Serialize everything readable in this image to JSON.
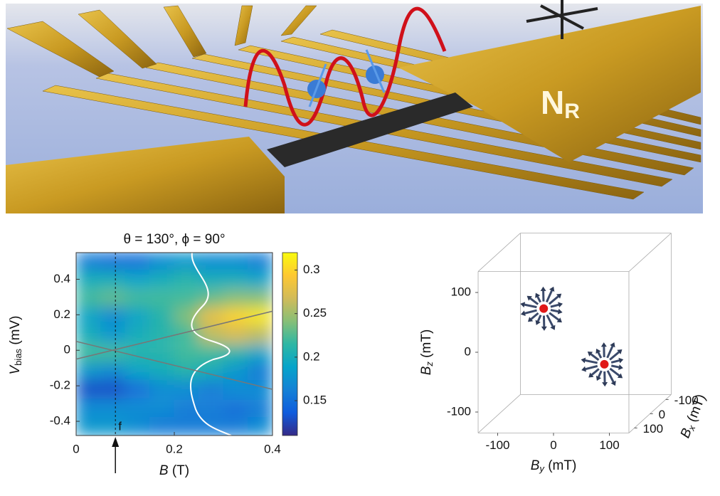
{
  "illustration": {
    "label": "N",
    "subscript": "R"
  },
  "chart_data": [
    {
      "type": "heatmap",
      "title": "θ = 130°, ϕ = 90°",
      "xlabel": {
        "symbol": "B",
        "unit": "(T)"
      },
      "ylabel": {
        "symbol": "V",
        "subscript": "bias",
        "unit": "(mV)"
      },
      "xlim": [
        0,
        0.4
      ],
      "xticks": [
        0,
        0.2,
        0.4
      ],
      "ylim": [
        -0.48,
        0.55
      ],
      "yticks": [
        0.4,
        0.2,
        0,
        -0.2,
        -0.4
      ],
      "x": [
        0.025,
        0.075,
        0.125,
        0.175,
        0.225,
        0.275,
        0.325,
        0.375
      ],
      "y": [
        0.5,
        0.4,
        0.29,
        0.19,
        0.09,
        -0.02,
        -0.12,
        -0.22,
        -0.33,
        -0.43
      ],
      "z": [
        [
          0.16,
          0.15,
          0.15,
          0.17,
          0.18,
          0.17,
          0.17,
          0.16
        ],
        [
          0.2,
          0.2,
          0.19,
          0.2,
          0.21,
          0.2,
          0.2,
          0.19
        ],
        [
          0.22,
          0.23,
          0.22,
          0.22,
          0.22,
          0.23,
          0.24,
          0.24
        ],
        [
          0.19,
          0.17,
          0.19,
          0.21,
          0.24,
          0.28,
          0.3,
          0.31
        ],
        [
          0.2,
          0.18,
          0.2,
          0.21,
          0.22,
          0.26,
          0.27,
          0.26
        ],
        [
          0.22,
          0.22,
          0.21,
          0.21,
          0.22,
          0.22,
          0.21,
          0.19
        ],
        [
          0.18,
          0.17,
          0.19,
          0.2,
          0.21,
          0.2,
          0.18,
          0.16
        ],
        [
          0.13,
          0.13,
          0.15,
          0.17,
          0.17,
          0.16,
          0.17,
          0.17
        ],
        [
          0.17,
          0.17,
          0.17,
          0.17,
          0.16,
          0.16,
          0.15,
          0.16
        ],
        [
          0.18,
          0.18,
          0.17,
          0.16,
          0.16,
          0.16,
          0.16,
          0.17
        ]
      ],
      "clim": [
        0.11,
        0.32
      ],
      "cticks": [
        0.3,
        0.25,
        0.2,
        0.15
      ],
      "colormap": [
        "#352a87",
        "#0f5cdd",
        "#1481d6",
        "#06a4ca",
        "#2eb7a4",
        "#87bf77",
        "#d1bb59",
        "#fec832",
        "#f9fb0e"
      ],
      "lines": [
        {
          "color": "#777777",
          "x": [
            0,
            0.4
          ],
          "y": [
            -0.05,
            0.22
          ]
        },
        {
          "color": "#777777",
          "x": [
            0,
            0.4
          ],
          "y": [
            0.05,
            -0.22
          ]
        }
      ],
      "marker": {
        "x": 0.08,
        "label": "f"
      }
    },
    {
      "type": "scatter3d",
      "xlabel": {
        "symbol": "B",
        "subscript": "y",
        "unit": "(mT)"
      },
      "ylabel": {
        "symbol": "B",
        "subscript": "z",
        "unit": "(mT)"
      },
      "zlabel": {
        "symbol": "B",
        "subscript": "x",
        "unit": "(mT)"
      },
      "xticks": [
        -100,
        0,
        100
      ],
      "yticks": [
        100,
        0,
        -100
      ],
      "zticks": [
        -100,
        0,
        100
      ],
      "xlim": [
        -135,
        135
      ],
      "ylim": [
        -135,
        135
      ],
      "zlim": [
        -135,
        135
      ],
      "color": "#e01818",
      "points": [
        {
          "x": -33,
          "y": 60,
          "z": 80
        },
        {
          "x": 70,
          "y": -38,
          "z": 60
        }
      ]
    }
  ]
}
